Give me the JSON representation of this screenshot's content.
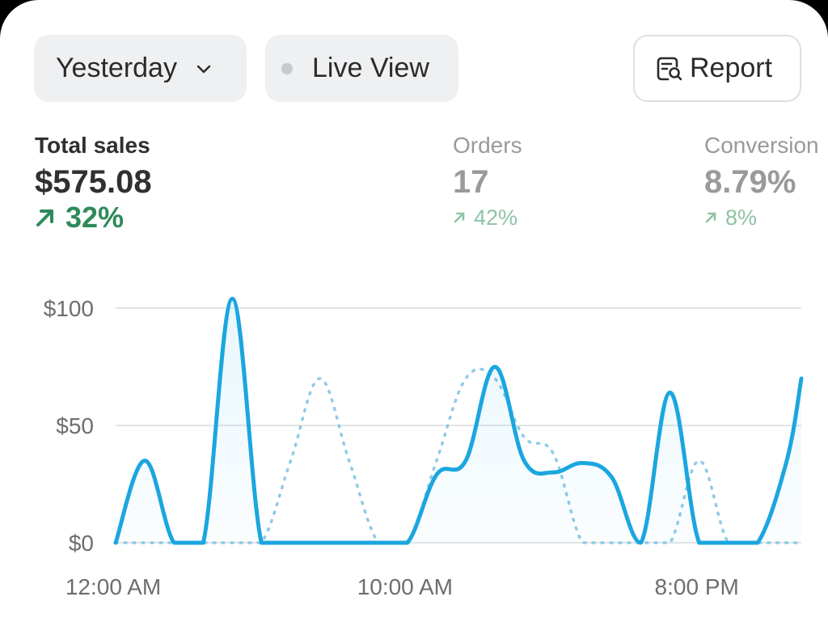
{
  "filters": {
    "date_range": "Yesterday",
    "live_view": "Live View",
    "report": "Report"
  },
  "icons": {
    "date_dropdown": "chevron-down-icon",
    "live_status": "dot-icon",
    "report": "report-search-icon",
    "trend": "arrow-up-right-icon"
  },
  "metrics": [
    {
      "label": "Total sales",
      "value": "$575.08",
      "change": "32%"
    },
    {
      "label": "Orders",
      "value": "17",
      "change": "42%"
    },
    {
      "label": "Conversion",
      "value": "8.79%",
      "change": "8%"
    }
  ],
  "colors": {
    "primary_line": "#1ba6e0",
    "comparison_line": "#8fcbe6",
    "positive": "#2f8a5a",
    "positive_muted": "#8fc3a5"
  },
  "chart_data": {
    "type": "line",
    "y_ticks": [
      "$0",
      "$50",
      "$100"
    ],
    "y_tick_values": [
      0,
      50,
      100
    ],
    "x_ticks": [
      "12:00 AM",
      "10:00 AM",
      "8:00 PM"
    ],
    "x_tick_values": [
      0,
      10,
      20
    ],
    "ylim": [
      0,
      105
    ],
    "xlim": [
      0,
      23.5
    ],
    "grid": true,
    "series": [
      {
        "style": "solid",
        "x": [
          0,
          1,
          2,
          3,
          4,
          5,
          6,
          7,
          8,
          9,
          10,
          11,
          12,
          13,
          14,
          15,
          16,
          17,
          18,
          19,
          20,
          21,
          22,
          23,
          23.5
        ],
        "y": [
          0,
          35,
          0,
          0,
          104,
          0,
          0,
          0,
          0,
          0,
          0,
          29,
          35,
          75,
          35,
          30,
          34,
          28,
          0,
          64,
          0,
          0,
          0,
          35,
          70
        ]
      },
      {
        "style": "dotted",
        "x": [
          0,
          1,
          2,
          3,
          4,
          5,
          6,
          7,
          8,
          9,
          10,
          11,
          12,
          13,
          14,
          15,
          16,
          17,
          18,
          19,
          20,
          21,
          22,
          23,
          23.5
        ],
        "y": [
          0,
          0,
          0,
          0,
          0,
          0,
          35,
          70,
          35,
          0,
          0,
          35,
          70,
          70,
          45,
          38,
          0,
          0,
          0,
          0,
          35,
          0,
          0,
          0,
          0
        ]
      }
    ]
  }
}
